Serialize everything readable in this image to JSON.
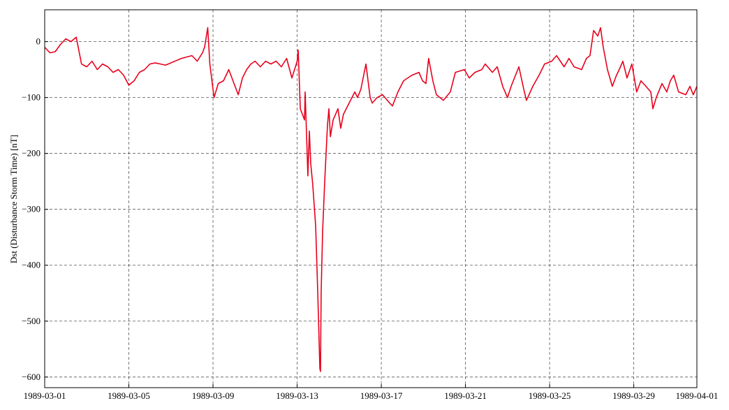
{
  "chart_data": {
    "type": "line",
    "y_label": "Dst (Disturbance Storm Time) [nT]",
    "color": "#e8001c",
    "grid": true,
    "x": [
      0,
      0.25,
      0.5,
      0.75,
      1.0,
      1.25,
      1.5,
      1.75,
      2.0,
      2.25,
      2.5,
      2.75,
      3.0,
      3.25,
      3.5,
      3.75,
      4.0,
      4.25,
      4.5,
      4.75,
      5.0,
      5.25,
      5.5,
      5.75,
      6.0,
      6.5,
      7.0,
      7.25,
      7.5,
      7.6,
      7.75,
      7.85,
      8.05,
      8.25,
      8.5,
      8.75,
      9.0,
      9.2,
      9.4,
      9.6,
      9.8,
      10.0,
      10.25,
      10.5,
      10.75,
      11.0,
      11.25,
      11.5,
      11.75,
      12.0,
      12.05,
      12.15,
      12.35,
      12.38,
      12.51,
      12.58,
      12.65,
      12.74,
      12.88,
      12.98,
      13.08,
      13.11,
      13.14,
      13.21,
      13.31,
      13.44,
      13.51,
      13.58,
      13.71,
      13.94,
      14.07,
      14.2,
      14.47,
      14.74,
      14.87,
      15.03,
      15.27,
      15.47,
      15.57,
      15.8,
      16.06,
      16.4,
      16.53,
      16.79,
      17.06,
      17.46,
      17.79,
      17.96,
      18.12,
      18.25,
      18.45,
      18.62,
      18.95,
      19.28,
      19.52,
      19.95,
      20.18,
      20.45,
      20.78,
      20.94,
      21.28,
      21.51,
      21.77,
      22.0,
      22.17,
      22.54,
      22.77,
      22.9,
      23.2,
      23.5,
      23.76,
      24.1,
      24.33,
      24.69,
      24.92,
      25.16,
      25.52,
      25.75,
      25.92,
      26.09,
      26.29,
      26.42,
      26.55,
      26.75,
      26.98,
      27.18,
      27.31,
      27.48,
      27.68,
      27.91,
      28.14,
      28.34,
      28.58,
      28.81,
      28.91,
      29.07,
      29.34,
      29.57,
      29.74,
      29.9,
      30.13,
      30.47,
      30.67,
      30.83,
      31
    ],
    "values": [
      -10,
      -20,
      -18,
      -5,
      5,
      0,
      8,
      -40,
      -45,
      -35,
      -50,
      -40,
      -45,
      -55,
      -50,
      -60,
      -78,
      -70,
      -55,
      -50,
      -40,
      -38,
      -40,
      -42,
      -38,
      -30,
      -25,
      -35,
      -20,
      -10,
      25,
      -40,
      -100,
      -75,
      -70,
      -50,
      -75,
      -95,
      -65,
      -50,
      -40,
      -35,
      -45,
      -35,
      -40,
      -35,
      -45,
      -30,
      -65,
      -35,
      -15,
      -120,
      -140,
      -90,
      -240,
      -160,
      -220,
      -255,
      -330,
      -450,
      -585,
      -590,
      -450,
      -340,
      -250,
      -150,
      -120,
      -170,
      -140,
      -120,
      -155,
      -130,
      -110,
      -90,
      -100,
      -85,
      -40,
      -100,
      -110,
      -100,
      -95,
      -110,
      -115,
      -90,
      -70,
      -60,
      -55,
      -70,
      -75,
      -30,
      -70,
      -95,
      -105,
      -90,
      -55,
      -50,
      -65,
      -55,
      -50,
      -40,
      -55,
      -45,
      -80,
      -100,
      -80,
      -45,
      -85,
      -105,
      -80,
      -60,
      -40,
      -35,
      -25,
      -45,
      -30,
      -45,
      -50,
      -30,
      -25,
      20,
      10,
      25,
      -10,
      -50,
      -80,
      -60,
      -50,
      -35,
      -65,
      -40,
      -90,
      -70,
      -80,
      -90,
      -120,
      -100,
      -75,
      -90,
      -70,
      -60,
      -90,
      -95,
      -80,
      -95,
      -80
    ],
    "xlim": [
      0,
      31
    ],
    "xticks": [
      {
        "value": 0,
        "label": "1989-03-01"
      },
      {
        "value": 4,
        "label": "1989-03-05"
      },
      {
        "value": 8,
        "label": "1989-03-09"
      },
      {
        "value": 12,
        "label": "1989-03-13"
      },
      {
        "value": 16,
        "label": "1989-03-17"
      },
      {
        "value": 20,
        "label": "1989-03-21"
      },
      {
        "value": 24,
        "label": "1989-03-25"
      },
      {
        "value": 28,
        "label": "1989-03-29"
      },
      {
        "value": 31,
        "label": "1989-04-01"
      }
    ],
    "ylim": [
      -619,
      57
    ],
    "yticks": [
      {
        "value": -600,
        "label": "−600"
      },
      {
        "value": -500,
        "label": "−500"
      },
      {
        "value": -400,
        "label": "−400"
      },
      {
        "value": -300,
        "label": "−300"
      },
      {
        "value": -200,
        "label": "−200"
      },
      {
        "value": -100,
        "label": "−100"
      },
      0
    ]
  }
}
